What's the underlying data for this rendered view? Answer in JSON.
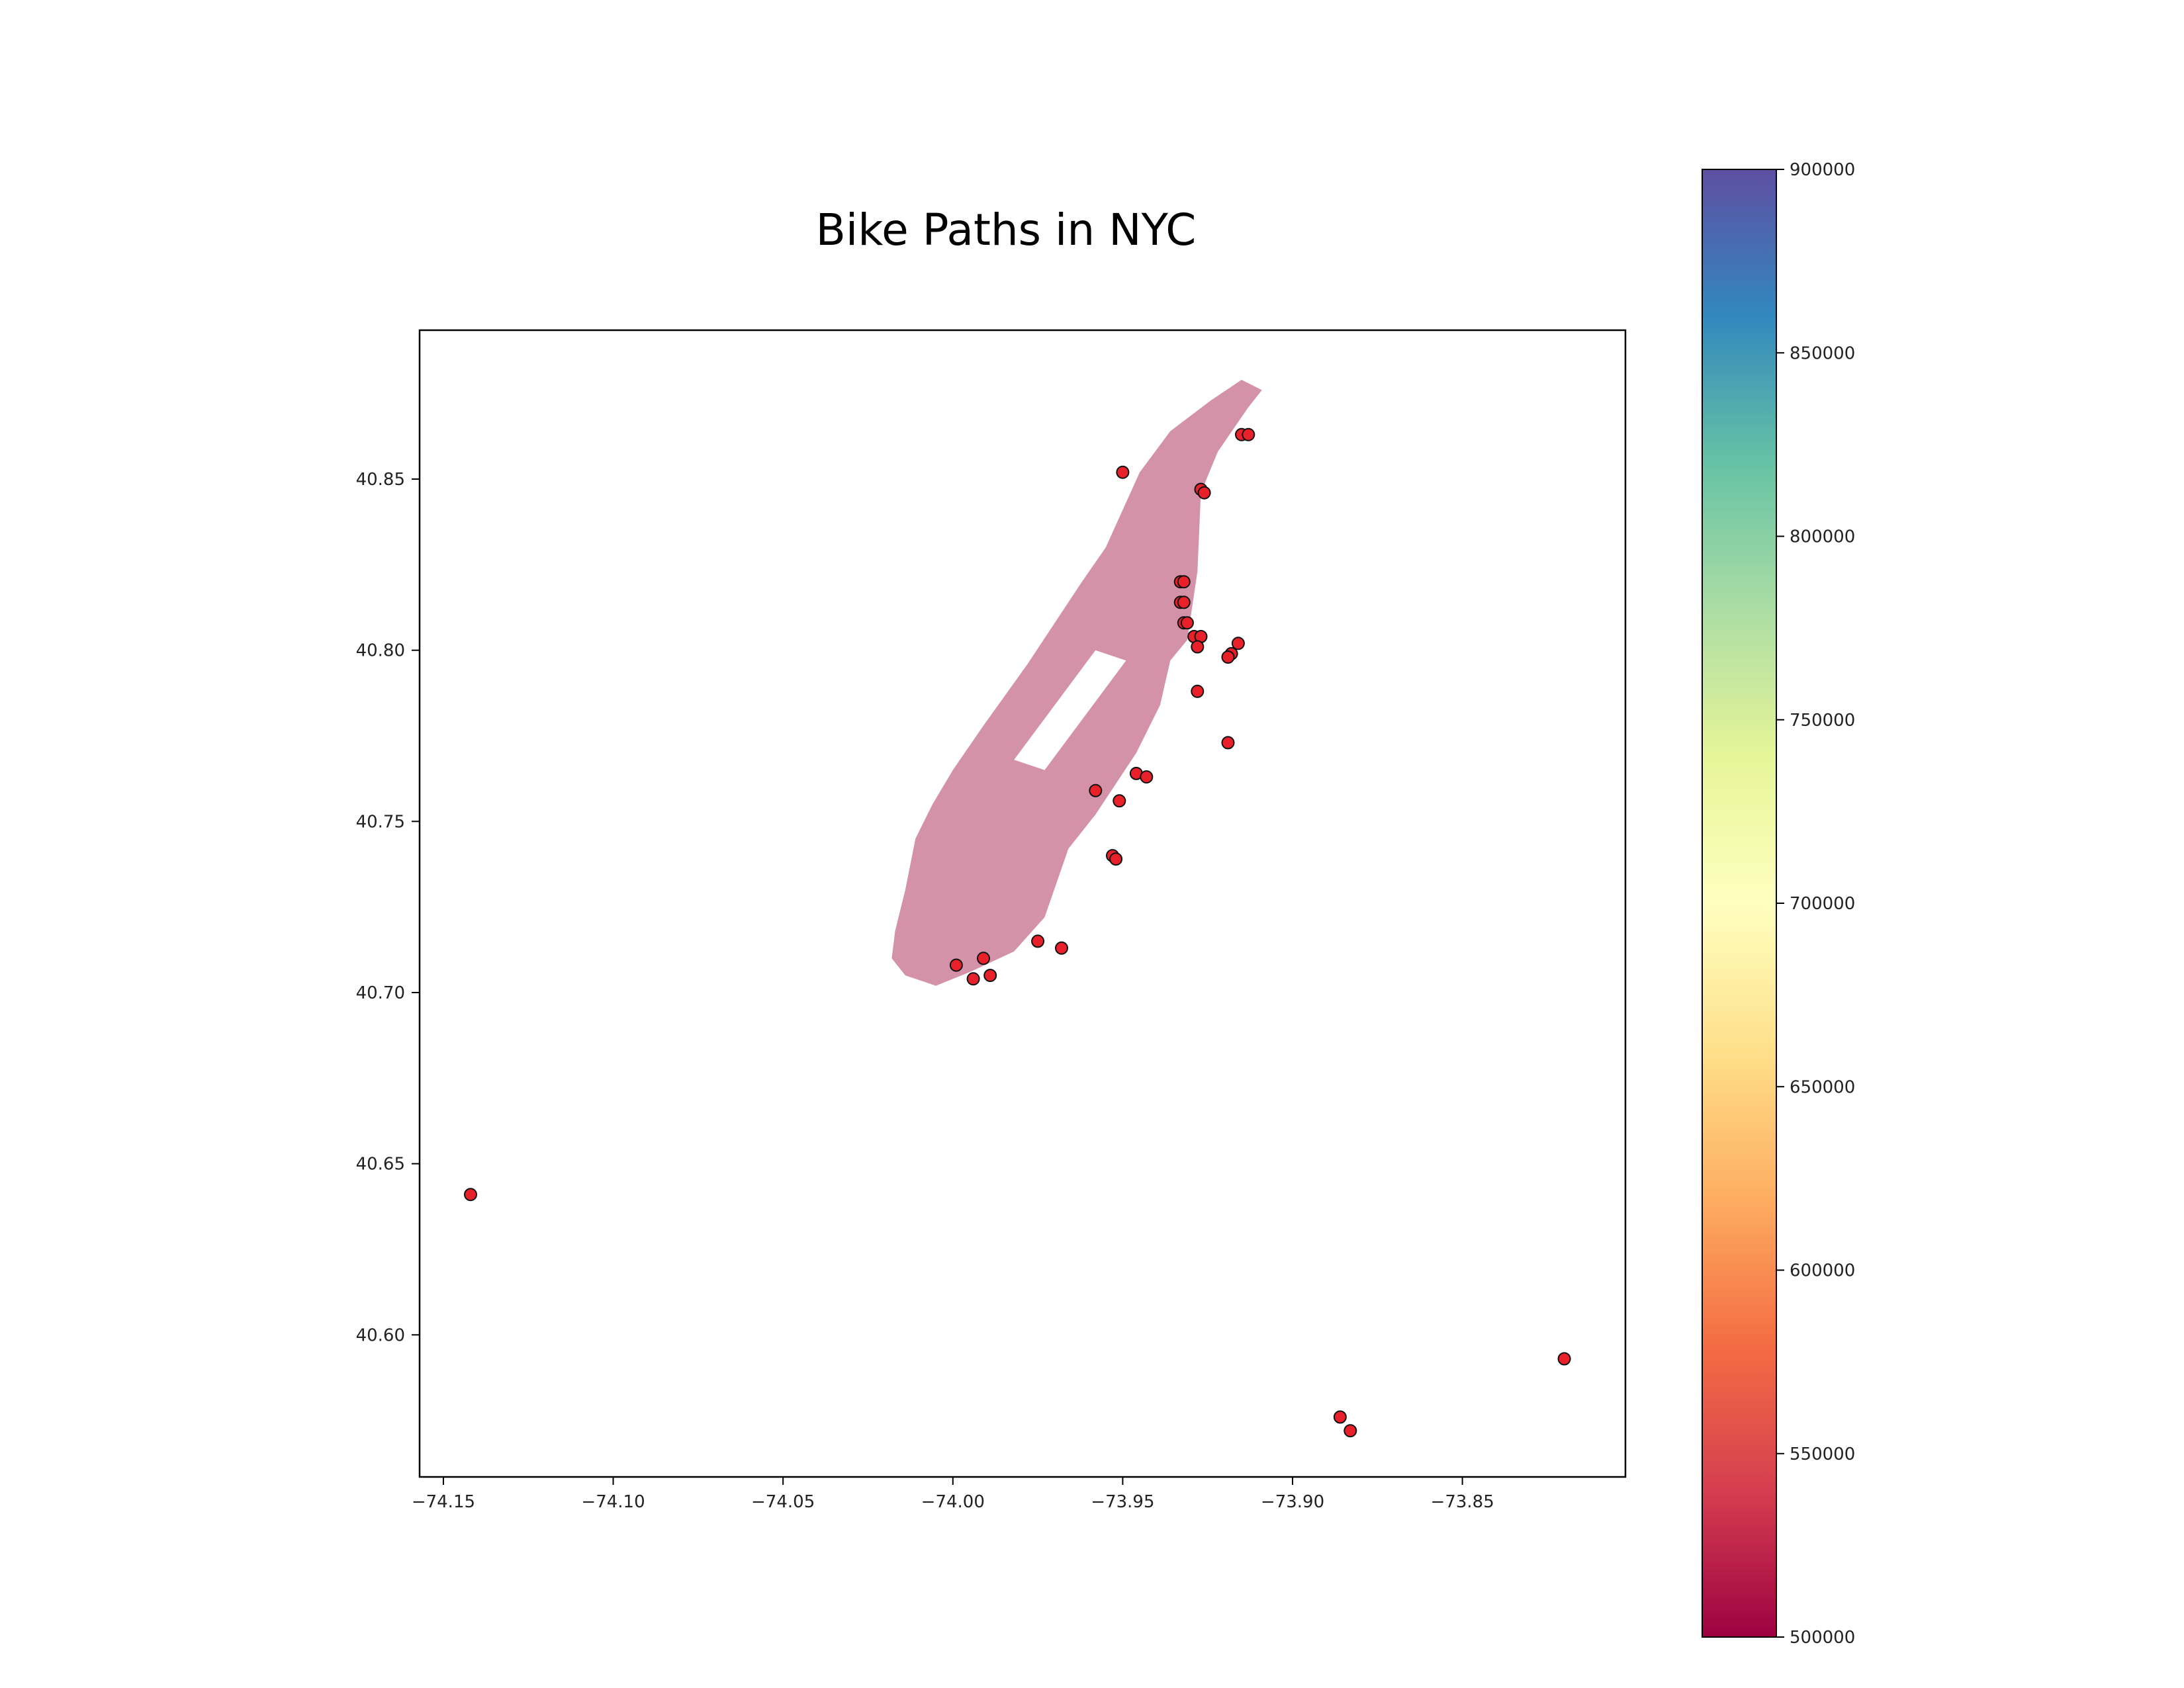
{
  "chart_data": {
    "type": "scatter",
    "title": "Bike Paths in NYC",
    "xlabel": "",
    "ylabel": "",
    "xlim": [
      -74.157,
      -73.802
    ],
    "ylim": [
      40.5585,
      40.8935
    ],
    "x_ticks": [
      -74.15,
      -74.1,
      -74.05,
      -74.0,
      -73.95,
      -73.9,
      -73.85
    ],
    "x_tick_labels": [
      "−74.15",
      "−74.10",
      "−74.05",
      "−74.00",
      "−73.95",
      "−73.90",
      "−73.85"
    ],
    "y_ticks": [
      40.6,
      40.65,
      40.7,
      40.75,
      40.8,
      40.85
    ],
    "y_tick_labels": [
      "40.60",
      "40.65",
      "40.70",
      "40.75",
      "40.80",
      "40.85"
    ],
    "grid": false,
    "point_color": "#e8202a",
    "point_edge_color": "#111111",
    "region_color": "#cc7f99",
    "region_outline": [
      [
        -74.018,
        40.71
      ],
      [
        -74.014,
        40.705
      ],
      [
        -74.005,
        40.702
      ],
      [
        -73.995,
        40.706
      ],
      [
        -73.982,
        40.712
      ],
      [
        -73.973,
        40.722
      ],
      [
        -73.966,
        40.742
      ],
      [
        -73.958,
        40.752
      ],
      [
        -73.946,
        40.77
      ],
      [
        -73.939,
        40.784
      ],
      [
        -73.936,
        40.797
      ],
      [
        -73.931,
        40.803
      ],
      [
        -73.928,
        40.823
      ],
      [
        -73.927,
        40.846
      ],
      [
        -73.922,
        40.858
      ],
      [
        -73.913,
        40.871
      ],
      [
        -73.909,
        40.876
      ],
      [
        -73.915,
        40.879
      ],
      [
        -73.924,
        40.873
      ],
      [
        -73.936,
        40.864
      ],
      [
        -73.945,
        40.852
      ],
      [
        -73.955,
        40.83
      ],
      [
        -73.962,
        40.82
      ],
      [
        -73.978,
        40.796
      ],
      [
        -73.991,
        40.778
      ],
      [
        -74.0,
        40.765
      ],
      [
        -74.006,
        40.755
      ],
      [
        -74.011,
        40.745
      ],
      [
        -74.014,
        40.73
      ],
      [
        -74.017,
        40.718
      ]
    ],
    "park": [
      [
        -73.982,
        40.768
      ],
      [
        -73.973,
        40.765
      ],
      [
        -73.949,
        40.797
      ],
      [
        -73.958,
        40.8
      ]
    ],
    "x": [
      -74.142,
      -73.95,
      -73.927,
      -73.926,
      -73.915,
      -73.913,
      -73.933,
      -73.932,
      -73.933,
      -73.932,
      -73.932,
      -73.931,
      -73.929,
      -73.927,
      -73.928,
      -73.918,
      -73.916,
      -73.919,
      -73.928,
      -73.919,
      -73.946,
      -73.943,
      -73.958,
      -73.951,
      -73.953,
      -73.952,
      -73.975,
      -73.968,
      -73.999,
      -73.991,
      -73.994,
      -73.989,
      -73.82,
      -73.886,
      -73.883
    ],
    "y": [
      40.641,
      40.852,
      40.847,
      40.846,
      40.863,
      40.863,
      40.82,
      40.82,
      40.814,
      40.814,
      40.808,
      40.808,
      40.804,
      40.804,
      40.801,
      40.799,
      40.802,
      40.798,
      40.788,
      40.773,
      40.764,
      40.763,
      40.759,
      40.756,
      40.74,
      40.739,
      40.715,
      40.713,
      40.708,
      40.71,
      40.704,
      40.705,
      40.593,
      40.576,
      40.572
    ],
    "colorbar": {
      "min": 500000,
      "max": 900000,
      "tick_values": [
        500000,
        550000,
        600000,
        650000,
        700000,
        750000,
        800000,
        850000,
        900000
      ],
      "tick_labels": [
        "500000",
        "550000",
        "600000",
        "650000",
        "700000",
        "750000",
        "800000",
        "850000",
        "900000"
      ],
      "colormap": "Spectral",
      "colors": [
        "#9e0142",
        "#d53e4f",
        "#f46d43",
        "#fdae61",
        "#fee08b",
        "#ffffbf",
        "#e6f598",
        "#abdda4",
        "#66c2a5",
        "#3288bd",
        "#5e4fa2"
      ]
    }
  }
}
